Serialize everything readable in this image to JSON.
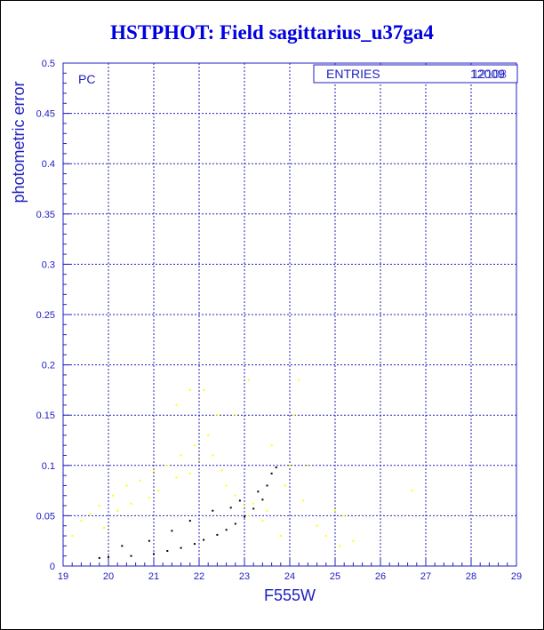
{
  "title": "HSTPHOT: Field sagittarius_u37ga4",
  "colors": {
    "title": "#0000e0",
    "axis": "#2020c0",
    "grid": "#2020c0",
    "series_bright": "#ffff00",
    "series_dark": "#000000"
  },
  "chart_data": {
    "type": "scatter",
    "title": "HSTPHOT: Field sagittarius_u37ga4",
    "xlabel": "F555W",
    "ylabel": "photometric error",
    "xlim": [
      19,
      29
    ],
    "ylim": [
      0,
      0.5
    ],
    "x_ticks": [
      19,
      20,
      21,
      22,
      23,
      24,
      25,
      26,
      27,
      28,
      29
    ],
    "y_ticks": [
      0,
      0.05,
      0.1,
      0.15,
      0.2,
      0.25,
      0.3,
      0.35,
      0.4,
      0.45,
      0.5
    ],
    "x_tick_labels": [
      "19",
      "20",
      "21",
      "22",
      "23",
      "24",
      "25",
      "26",
      "27",
      "28",
      "29"
    ],
    "y_tick_labels": [
      "0",
      "0.05",
      "0.1",
      "0.15",
      "0.2",
      "0.25",
      "0.3",
      "0.35",
      "0.4",
      "0.45",
      "0.5"
    ],
    "grid": true,
    "stat_box": {
      "label": "ENTRIES",
      "values": [
        "12009",
        "12108"
      ]
    },
    "panel_label": "PC",
    "series": [
      {
        "color": "yellow",
        "points": [
          [
            19.2,
            0.03
          ],
          [
            19.4,
            0.045
          ],
          [
            19.6,
            0.052
          ],
          [
            19.8,
            0.06
          ],
          [
            19.9,
            0.038
          ],
          [
            20.1,
            0.07
          ],
          [
            20.2,
            0.055
          ],
          [
            20.4,
            0.08
          ],
          [
            20.5,
            0.062
          ],
          [
            20.7,
            0.085
          ],
          [
            20.9,
            0.068
          ],
          [
            21.0,
            0.095
          ],
          [
            21.1,
            0.075
          ],
          [
            21.3,
            0.1
          ],
          [
            21.5,
            0.088
          ],
          [
            21.6,
            0.11
          ],
          [
            21.8,
            0.092
          ],
          [
            21.9,
            0.12
          ],
          [
            22.0,
            0.105
          ],
          [
            22.2,
            0.13
          ],
          [
            22.3,
            0.11
          ],
          [
            22.4,
            0.15
          ],
          [
            22.5,
            0.095
          ],
          [
            22.6,
            0.08
          ],
          [
            22.8,
            0.07
          ],
          [
            23.0,
            0.06
          ],
          [
            23.1,
            0.05
          ],
          [
            23.2,
            0.062
          ],
          [
            23.4,
            0.045
          ],
          [
            23.5,
            0.055
          ],
          [
            21.5,
            0.16
          ],
          [
            21.8,
            0.175
          ],
          [
            22.1,
            0.175
          ],
          [
            22.8,
            0.15
          ],
          [
            23.1,
            0.185
          ],
          [
            24.2,
            0.185
          ],
          [
            24.1,
            0.15
          ],
          [
            23.6,
            0.12
          ],
          [
            24.0,
            0.1
          ],
          [
            24.4,
            0.1
          ],
          [
            24.6,
            0.04
          ],
          [
            24.8,
            0.03
          ],
          [
            25.0,
            0.055
          ],
          [
            25.2,
            0.05
          ],
          [
            25.4,
            0.025
          ],
          [
            24.3,
            0.065
          ],
          [
            23.8,
            0.03
          ],
          [
            23.9,
            0.08
          ],
          [
            26.7,
            0.075
          ],
          [
            25.1,
            0.02
          ]
        ]
      },
      {
        "color": "black",
        "points": [
          [
            19.8,
            0.008
          ],
          [
            20.0,
            0.009
          ],
          [
            20.5,
            0.01
          ],
          [
            21.0,
            0.012
          ],
          [
            21.3,
            0.015
          ],
          [
            21.6,
            0.018
          ],
          [
            21.9,
            0.022
          ],
          [
            22.1,
            0.026
          ],
          [
            22.4,
            0.031
          ],
          [
            22.6,
            0.036
          ],
          [
            22.8,
            0.042
          ],
          [
            23.0,
            0.049
          ],
          [
            23.2,
            0.057
          ],
          [
            23.4,
            0.066
          ],
          [
            23.5,
            0.08
          ],
          [
            23.6,
            0.092
          ],
          [
            23.7,
            0.098
          ],
          [
            21.8,
            0.045
          ],
          [
            22.3,
            0.055
          ],
          [
            22.9,
            0.065
          ],
          [
            20.9,
            0.025
          ],
          [
            21.4,
            0.035
          ],
          [
            20.3,
            0.02
          ],
          [
            23.3,
            0.074
          ],
          [
            22.7,
            0.058
          ]
        ]
      }
    ]
  }
}
